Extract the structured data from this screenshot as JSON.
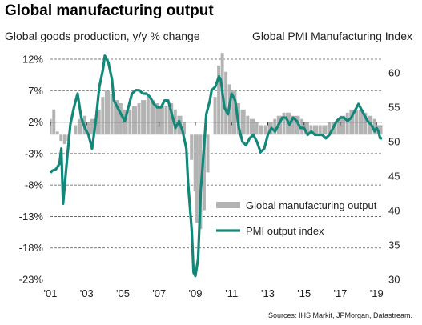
{
  "title": "Global manufacturing output",
  "left_axis_label": "Global  goods production, y/y % change",
  "right_axis_label": "Global  PMI Manufacturing Index",
  "source": "Sources: IHS Markit, JPMorgan, Datastream.",
  "colors": {
    "bars": "#b3b3b3",
    "line": "#13877a",
    "grid": "#555555"
  },
  "chart_data": {
    "type": "bar+line",
    "x_ticks": [
      "'01",
      "'03",
      "'05",
      "'07",
      "'09",
      "'11",
      "'13",
      "'15",
      "'17",
      "'19"
    ],
    "x_range": [
      2001,
      2019.3
    ],
    "left_axis": {
      "ticks": [
        "12%",
        "7%",
        "2%",
        "-3%",
        "-8%",
        "-13%",
        "-18%",
        "-23%"
      ],
      "range": [
        -23,
        12
      ]
    },
    "right_axis": {
      "ticks": [
        "60",
        "55",
        "50",
        "45",
        "40",
        "35",
        "30"
      ],
      "range": [
        30,
        62
      ]
    },
    "grid": "dashed horizontal",
    "legend_position": "bottom-right",
    "series": [
      {
        "name": "Global manufacturing output",
        "type": "bar",
        "axis": "left",
        "points": [
          [
            2001.0,
            2.5
          ],
          [
            2001.1,
            4.0
          ],
          [
            2001.3,
            0.5
          ],
          [
            2001.5,
            -1.0
          ],
          [
            2001.7,
            -1.5
          ],
          [
            2001.9,
            -1.0
          ],
          [
            2002.1,
            0.0
          ],
          [
            2002.3,
            1.5
          ],
          [
            2002.5,
            2.5
          ],
          [
            2002.8,
            3.0
          ],
          [
            2003.0,
            2.0
          ],
          [
            2003.2,
            2.5
          ],
          [
            2003.5,
            4.0
          ],
          [
            2003.8,
            6.0
          ],
          [
            2004.0,
            7.0
          ],
          [
            2004.3,
            6.5
          ],
          [
            2004.5,
            5.5
          ],
          [
            2004.8,
            5.0
          ],
          [
            2005.0,
            4.0
          ],
          [
            2005.3,
            4.0
          ],
          [
            2005.5,
            4.5
          ],
          [
            2005.8,
            5.0
          ],
          [
            2006.0,
            5.5
          ],
          [
            2006.3,
            6.0
          ],
          [
            2006.5,
            5.5
          ],
          [
            2006.8,
            5.0
          ],
          [
            2007.0,
            4.5
          ],
          [
            2007.3,
            4.5
          ],
          [
            2007.5,
            5.0
          ],
          [
            2007.8,
            4.0
          ],
          [
            2008.0,
            3.0
          ],
          [
            2008.3,
            2.0
          ],
          [
            2008.5,
            0.0
          ],
          [
            2008.7,
            -4.0
          ],
          [
            2008.9,
            -9.0
          ],
          [
            2009.0,
            -14.0
          ],
          [
            2009.2,
            -15.0
          ],
          [
            2009.4,
            -12.0
          ],
          [
            2009.6,
            -6.0
          ],
          [
            2009.8,
            0.0
          ],
          [
            2010.0,
            6.0
          ],
          [
            2010.2,
            11.0
          ],
          [
            2010.4,
            13.0
          ],
          [
            2010.6,
            10.0
          ],
          [
            2010.8,
            8.0
          ],
          [
            2011.0,
            7.0
          ],
          [
            2011.3,
            5.0
          ],
          [
            2011.5,
            4.0
          ],
          [
            2011.8,
            3.0
          ],
          [
            2012.0,
            2.5
          ],
          [
            2012.3,
            2.0
          ],
          [
            2012.5,
            1.5
          ],
          [
            2012.8,
            1.5
          ],
          [
            2013.0,
            2.0
          ],
          [
            2013.3,
            2.5
          ],
          [
            2013.5,
            3.0
          ],
          [
            2013.8,
            3.5
          ],
          [
            2014.0,
            3.5
          ],
          [
            2014.3,
            3.0
          ],
          [
            2014.5,
            3.0
          ],
          [
            2014.8,
            2.5
          ],
          [
            2015.0,
            2.0
          ],
          [
            2015.3,
            1.5
          ],
          [
            2015.5,
            1.5
          ],
          [
            2015.8,
            1.5
          ],
          [
            2016.0,
            1.5
          ],
          [
            2016.3,
            2.0
          ],
          [
            2016.5,
            2.0
          ],
          [
            2016.8,
            2.5
          ],
          [
            2017.0,
            3.0
          ],
          [
            2017.3,
            3.5
          ],
          [
            2017.5,
            4.0
          ],
          [
            2017.8,
            4.0
          ],
          [
            2018.0,
            4.0
          ],
          [
            2018.3,
            3.5
          ],
          [
            2018.5,
            3.0
          ],
          [
            2018.8,
            2.5
          ],
          [
            2019.0,
            1.5
          ],
          [
            2019.2,
            1.5
          ]
        ]
      },
      {
        "name": "PMI output index",
        "type": "line",
        "axis": "right",
        "points": [
          [
            2001.0,
            45.5
          ],
          [
            2001.1,
            45.8
          ],
          [
            2001.3,
            46.0
          ],
          [
            2001.5,
            46.8
          ],
          [
            2001.6,
            49.0
          ],
          [
            2001.7,
            41.0
          ],
          [
            2001.9,
            47.0
          ],
          [
            2002.1,
            52.5
          ],
          [
            2002.3,
            55.0
          ],
          [
            2002.5,
            57.0
          ],
          [
            2002.7,
            53.5
          ],
          [
            2002.9,
            52.0
          ],
          [
            2003.1,
            51.0
          ],
          [
            2003.3,
            49.0
          ],
          [
            2003.5,
            53.0
          ],
          [
            2003.7,
            58.0
          ],
          [
            2003.9,
            60.5
          ],
          [
            2004.0,
            62.5
          ],
          [
            2004.2,
            61.5
          ],
          [
            2004.4,
            59.0
          ],
          [
            2004.5,
            56.0
          ],
          [
            2004.7,
            55.0
          ],
          [
            2004.9,
            54.0
          ],
          [
            2005.1,
            53.0
          ],
          [
            2005.3,
            55.0
          ],
          [
            2005.5,
            57.0
          ],
          [
            2005.7,
            57.5
          ],
          [
            2005.9,
            57.5
          ],
          [
            2006.1,
            57.0
          ],
          [
            2006.3,
            57.0
          ],
          [
            2006.5,
            56.5
          ],
          [
            2006.7,
            55.5
          ],
          [
            2006.9,
            55.0
          ],
          [
            2007.1,
            55.0
          ],
          [
            2007.3,
            56.0
          ],
          [
            2007.5,
            56.0
          ],
          [
            2007.7,
            54.0
          ],
          [
            2007.9,
            52.0
          ],
          [
            2008.1,
            53.0
          ],
          [
            2008.3,
            51.5
          ],
          [
            2008.5,
            49.0
          ],
          [
            2008.6,
            44.0
          ],
          [
            2008.8,
            37.0
          ],
          [
            2008.9,
            31.0
          ],
          [
            2009.0,
            30.5
          ],
          [
            2009.15,
            33.0
          ],
          [
            2009.3,
            43.0
          ],
          [
            2009.5,
            50.0
          ],
          [
            2009.6,
            54.0
          ],
          [
            2009.8,
            56.0
          ],
          [
            2009.9,
            57.5
          ],
          [
            2010.1,
            58.0
          ],
          [
            2010.3,
            59.5
          ],
          [
            2010.4,
            59.0
          ],
          [
            2010.6,
            55.0
          ],
          [
            2010.8,
            54.0
          ],
          [
            2011.0,
            57.0
          ],
          [
            2011.2,
            56.0
          ],
          [
            2011.4,
            52.0
          ],
          [
            2011.6,
            50.0
          ],
          [
            2011.8,
            49.5
          ],
          [
            2012.0,
            50.5
          ],
          [
            2012.2,
            51.0
          ],
          [
            2012.4,
            50.0
          ],
          [
            2012.6,
            48.5
          ],
          [
            2012.8,
            49.0
          ],
          [
            2013.0,
            51.0
          ],
          [
            2013.2,
            52.0
          ],
          [
            2013.4,
            51.5
          ],
          [
            2013.6,
            52.5
          ],
          [
            2013.8,
            53.5
          ],
          [
            2014.0,
            53.5
          ],
          [
            2014.2,
            52.5
          ],
          [
            2014.4,
            53.5
          ],
          [
            2014.6,
            53.0
          ],
          [
            2014.8,
            52.0
          ],
          [
            2015.0,
            52.0
          ],
          [
            2015.2,
            51.0
          ],
          [
            2015.4,
            51.5
          ],
          [
            2015.6,
            51.0
          ],
          [
            2015.8,
            51.0
          ],
          [
            2016.0,
            51.0
          ],
          [
            2016.2,
            50.5
          ],
          [
            2016.4,
            51.0
          ],
          [
            2016.6,
            52.0
          ],
          [
            2016.8,
            53.0
          ],
          [
            2017.0,
            53.5
          ],
          [
            2017.2,
            53.5
          ],
          [
            2017.4,
            53.0
          ],
          [
            2017.6,
            53.5
          ],
          [
            2017.8,
            54.5
          ],
          [
            2018.0,
            55.5
          ],
          [
            2018.1,
            55.0
          ],
          [
            2018.3,
            54.0
          ],
          [
            2018.5,
            53.0
          ],
          [
            2018.7,
            52.5
          ],
          [
            2018.9,
            51.5
          ],
          [
            2019.0,
            52.0
          ],
          [
            2019.1,
            51.5
          ],
          [
            2019.2,
            50.5
          ],
          [
            2019.3,
            50.5
          ]
        ]
      }
    ]
  }
}
